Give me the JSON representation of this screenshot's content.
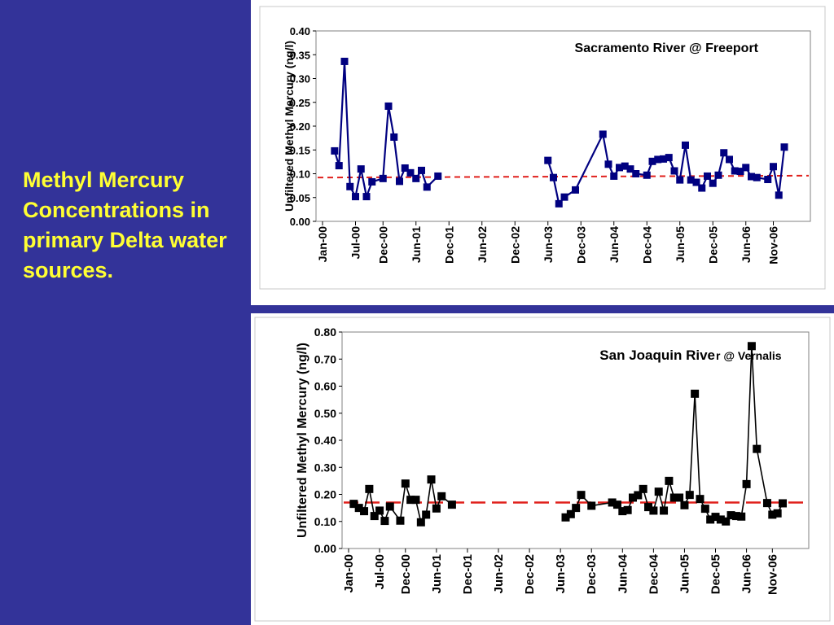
{
  "slide": {
    "title": "Methyl Mercury Concentrations in primary Delta water sources.",
    "colors": {
      "background": "#333399",
      "title": "#ffff33",
      "median_line": "#e0201c"
    }
  },
  "chart_data": [
    {
      "type": "line",
      "title": "Sacramento River @ Freeport",
      "ylabel": "Unfiltered Methyl Mercury (ng/l)",
      "xlabel": "",
      "ylim": [
        0,
        0.4
      ],
      "yticks": [
        "0.00",
        "0.05",
        "0.10",
        "0.15",
        "0.20",
        "0.25",
        "0.30",
        "0.35",
        "0.40"
      ],
      "xticks": [
        "Jan-00",
        "Jul-00",
        "Dec-00",
        "Jun-01",
        "Dec-01",
        "Jun-02",
        "Dec-02",
        "Jun-03",
        "Dec-03",
        "Jun-04",
        "Dec-04",
        "Jun-05",
        "Dec-05",
        "Jun-06",
        "Nov-06"
      ],
      "x_range_months": [
        0,
        82
      ],
      "series_color": "#000080",
      "marker": "square",
      "reference_line": {
        "style": "dashed",
        "color": "#e0201c",
        "y_start": 0.092,
        "y_end": 0.096
      },
      "segments": [
        [
          [
            2.2,
            0.148
          ],
          [
            3.0,
            0.117
          ],
          [
            4.0,
            0.336
          ],
          [
            5.0,
            0.073
          ],
          [
            6.0,
            0.052
          ],
          [
            7.0,
            0.11
          ],
          [
            8.0,
            0.052
          ],
          [
            9.0,
            0.083
          ],
          [
            11.0,
            0.09
          ],
          [
            12.0,
            0.242
          ],
          [
            13.0,
            0.177
          ],
          [
            14.0,
            0.084
          ],
          [
            15.0,
            0.112
          ],
          [
            16.0,
            0.102
          ],
          [
            17.0,
            0.09
          ],
          [
            18.0,
            0.107
          ],
          [
            19.0,
            0.072
          ],
          [
            21.0,
            0.095
          ]
        ],
        [
          [
            41.0,
            0.128
          ],
          [
            42.0,
            0.092
          ],
          [
            43.0,
            0.037
          ],
          [
            44.0,
            0.051
          ],
          [
            46.0,
            0.066
          ],
          [
            51.0,
            0.183
          ],
          [
            52.0,
            0.12
          ],
          [
            53.0,
            0.095
          ],
          [
            54.0,
            0.113
          ],
          [
            55.0,
            0.116
          ],
          [
            56.0,
            0.11
          ],
          [
            57.0,
            0.1
          ],
          [
            59.0,
            0.097
          ],
          [
            60.0,
            0.126
          ],
          [
            61.0,
            0.13
          ],
          [
            62.0,
            0.131
          ],
          [
            63.0,
            0.134
          ],
          [
            64.0,
            0.106
          ],
          [
            65.0,
            0.087
          ],
          [
            66.0,
            0.16
          ],
          [
            67.0,
            0.087
          ],
          [
            68.0,
            0.082
          ],
          [
            69.0,
            0.07
          ],
          [
            70.0,
            0.095
          ],
          [
            71.0,
            0.08
          ],
          [
            72.0,
            0.097
          ],
          [
            73.0,
            0.144
          ],
          [
            74.0,
            0.13
          ],
          [
            75.0,
            0.106
          ],
          [
            76.0,
            0.105
          ],
          [
            77.0,
            0.113
          ],
          [
            78.0,
            0.094
          ],
          [
            79.0,
            0.092
          ],
          [
            81.0,
            0.088
          ],
          [
            82.0,
            0.115
          ],
          [
            83.0,
            0.055
          ],
          [
            84.0,
            0.156
          ]
        ]
      ]
    },
    {
      "type": "line",
      "title": "San Joaquin River @ Vernalis",
      "title_main": "San Joaquin Rive",
      "title_rest": "r @ Vernalis",
      "ylabel": "Unfiltered Methyl Mercury (ng/l)",
      "xlabel": "",
      "ylim": [
        0,
        0.8
      ],
      "yticks": [
        "0.00",
        "0.10",
        "0.20",
        "0.30",
        "0.40",
        "0.50",
        "0.60",
        "0.70",
        "0.80"
      ],
      "xticks": [
        "Jan-00",
        "Jul-00",
        "Dec-00",
        "Jun-01",
        "Dec-01",
        "Jun-02",
        "Dec-02",
        "Jun-03",
        "Dec-03",
        "Jun-04",
        "Dec-04",
        "Jun-05",
        "Dec-05",
        "Jun-06",
        "Nov-06"
      ],
      "series_color": "#000000",
      "marker": "square",
      "reference_line": {
        "style": "dashed",
        "color": "#e0201c",
        "y_start": 0.17,
        "y_end": 0.17
      },
      "segments": [
        [
          [
            1.0,
            0.165
          ],
          [
            2.0,
            0.15
          ],
          [
            3.0,
            0.138
          ],
          [
            4.0,
            0.22
          ],
          [
            5.0,
            0.12
          ],
          [
            6.0,
            0.14
          ],
          [
            7.0,
            0.102
          ],
          [
            8.0,
            0.155
          ],
          [
            10.0,
            0.103
          ],
          [
            11.0,
            0.24
          ],
          [
            12.0,
            0.18
          ],
          [
            13.0,
            0.18
          ],
          [
            14.0,
            0.097
          ],
          [
            15.0,
            0.125
          ],
          [
            16.0,
            0.255
          ],
          [
            17.0,
            0.148
          ],
          [
            18.0,
            0.193
          ],
          [
            20.0,
            0.162
          ]
        ],
        [
          [
            42.0,
            0.115
          ],
          [
            43.0,
            0.127
          ],
          [
            44.0,
            0.15
          ],
          [
            45.0,
            0.198
          ],
          [
            47.0,
            0.158
          ],
          [
            51.0,
            0.17
          ],
          [
            52.0,
            0.162
          ],
          [
            53.0,
            0.138
          ],
          [
            54.0,
            0.142
          ],
          [
            55.0,
            0.188
          ],
          [
            56.0,
            0.197
          ],
          [
            57.0,
            0.22
          ],
          [
            58.0,
            0.153
          ],
          [
            59.0,
            0.14
          ],
          [
            60.0,
            0.21
          ],
          [
            61.0,
            0.14
          ],
          [
            62.0,
            0.25
          ],
          [
            63.0,
            0.188
          ],
          [
            64.0,
            0.188
          ],
          [
            65.0,
            0.16
          ],
          [
            66.0,
            0.198
          ],
          [
            67.0,
            0.572
          ],
          [
            68.0,
            0.183
          ],
          [
            69.0,
            0.147
          ],
          [
            70.0,
            0.107
          ],
          [
            71.0,
            0.117
          ],
          [
            72.0,
            0.107
          ],
          [
            73.0,
            0.1
          ],
          [
            74.0,
            0.123
          ],
          [
            75.0,
            0.12
          ],
          [
            76.0,
            0.118
          ],
          [
            77.0,
            0.238
          ],
          [
            78.0,
            0.748
          ],
          [
            79.0,
            0.368
          ],
          [
            81.0,
            0.168
          ],
          [
            82.0,
            0.125
          ],
          [
            83.0,
            0.13
          ],
          [
            84.0,
            0.167
          ]
        ]
      ]
    }
  ]
}
